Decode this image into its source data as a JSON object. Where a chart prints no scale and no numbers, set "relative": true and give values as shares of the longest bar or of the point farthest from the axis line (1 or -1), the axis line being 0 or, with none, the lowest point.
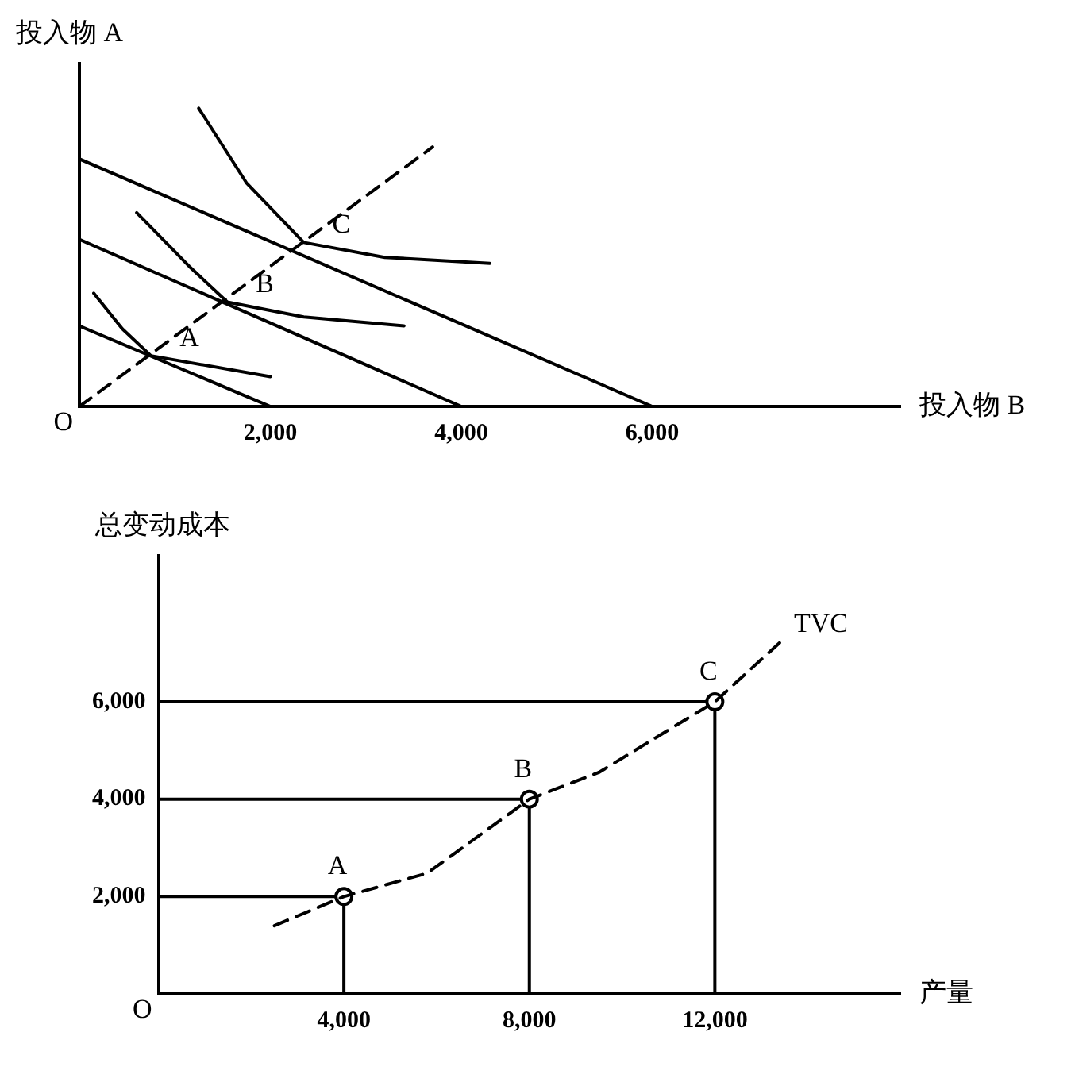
{
  "chart_data": [
    {
      "type": "line",
      "relative": true,
      "xlabel": "投入物 B",
      "ylabel": "投入物 A",
      "tick_labels": "x",
      "grid": false,
      "legend": false,
      "xlim": [
        0,
        8600
      ],
      "xticks": [
        {
          "value": 2000,
          "label": "2,000"
        },
        {
          "value": 4000,
          "label": "4,000"
        },
        {
          "value": 6000,
          "label": "6,000"
        }
      ],
      "series": [
        {
          "color": "#000000",
          "x": [
            0,
            2000
          ],
          "values": [
            0.27,
            0
          ]
        },
        {
          "color": "#000000",
          "x": [
            0,
            4000
          ],
          "values": [
            0.56,
            0
          ]
        },
        {
          "color": "#000000",
          "x": [
            0,
            6000
          ],
          "values": [
            0.83,
            0
          ]
        },
        {
          "color": "#000000",
          "x": [
            150,
            450,
            750,
            2000
          ],
          "values": [
            0.38,
            0.26,
            0.17,
            0.1
          ]
        },
        {
          "color": "#000000",
          "x": [
            600,
            1150,
            1550,
            2350,
            3400
          ],
          "values": [
            0.65,
            0.47,
            0.35,
            0.3,
            0.27
          ]
        },
        {
          "color": "#000000",
          "x": [
            1250,
            1750,
            2350,
            3200,
            4300
          ],
          "values": [
            1,
            0.75,
            0.55,
            0.5,
            0.48
          ]
        },
        {
          "color": "#000000",
          "x": [
            0,
            3700
          ],
          "values": [
            0,
            0.87
          ],
          "line_style": "dashed"
        }
      ],
      "annotations": [
        "O",
        {
          "text": "A",
          "x": 750,
          "y": 0.17
        },
        {
          "text": "B",
          "x": 1550,
          "y": 0.35
        },
        {
          "text": "C",
          "x": 2350,
          "y": 0.55
        }
      ]
    },
    {
      "type": "line",
      "xlabel": "产量",
      "ylabel": "总变动成本",
      "grid": false,
      "legend": false,
      "xlim": [
        0,
        16000
      ],
      "ylim": [
        0,
        9000
      ],
      "xticks": [
        {
          "value": 4000,
          "label": "4,000"
        },
        {
          "value": 8000,
          "label": "8,000"
        },
        {
          "value": 12000,
          "label": "12,000"
        }
      ],
      "yticks": [
        {
          "value": 2000,
          "label": "2,000"
        },
        {
          "value": 4000,
          "label": "4,000"
        },
        {
          "value": 6000,
          "label": "6,000"
        }
      ],
      "series": [
        {
          "name": "TVC",
          "color": "#000000",
          "line_style": "dashed",
          "x": [
            2500,
            4000,
            5800,
            8000,
            9500,
            12000,
            13500
          ],
          "values": [
            1400,
            2000,
            2480,
            4000,
            4550,
            6000,
            7300
          ]
        },
        {
          "type": "scatter",
          "marker": "circle",
          "color": "#000000",
          "x": [
            4000,
            8000,
            12000
          ],
          "values": [
            2000,
            4000,
            6000
          ]
        },
        {
          "color": "#000000",
          "x": [
            0,
            4000
          ],
          "values": [
            2000,
            2000
          ]
        },
        {
          "color": "#000000",
          "x": [
            4000,
            4000
          ],
          "values": [
            2000,
            0
          ]
        },
        {
          "color": "#000000",
          "x": [
            0,
            8000
          ],
          "values": [
            4000,
            4000
          ]
        },
        {
          "color": "#000000",
          "x": [
            8000,
            8000
          ],
          "values": [
            4000,
            0
          ]
        },
        {
          "color": "#000000",
          "x": [
            0,
            12000
          ],
          "values": [
            6000,
            6000
          ]
        },
        {
          "color": "#000000",
          "x": [
            12000,
            12000
          ],
          "values": [
            6000,
            0
          ]
        }
      ],
      "annotations": [
        "O",
        {
          "text": "A",
          "x": 4000,
          "y": 2000
        },
        {
          "text": "B",
          "x": 8000,
          "y": 4000
        },
        {
          "text": "C",
          "x": 12000,
          "y": 6000
        }
      ]
    }
  ]
}
